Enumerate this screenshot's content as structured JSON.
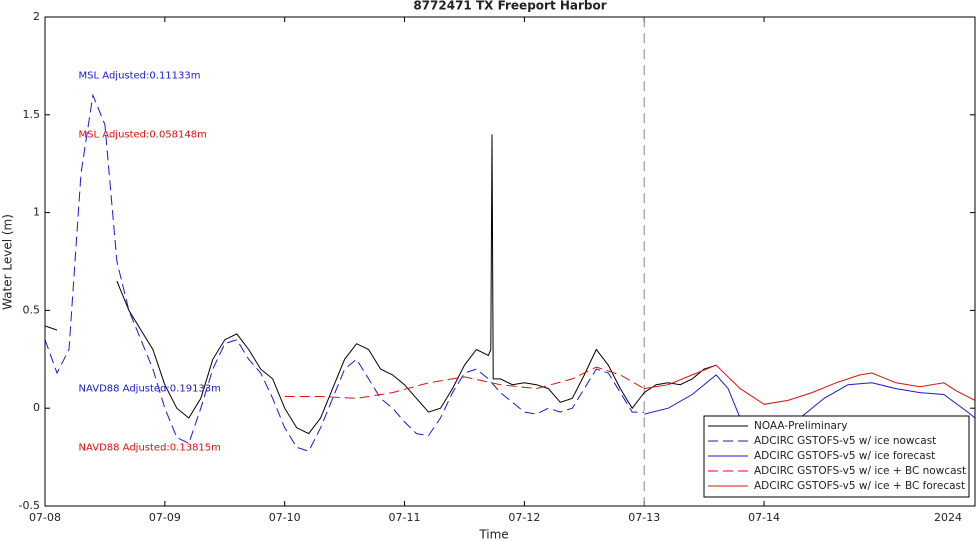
{
  "chart_data": {
    "type": "line",
    "title": "8772471 TX Freeport Harbor",
    "xlabel": "Time",
    "ylabel": "Water Level (m)",
    "x_secondary_label": "2024",
    "xlim": [
      8,
      15.76
    ],
    "ylim": [
      -0.5,
      2
    ],
    "xticks": [
      {
        "value": 8,
        "label": "07-08"
      },
      {
        "value": 9,
        "label": "07-09"
      },
      {
        "value": 10,
        "label": "07-10"
      },
      {
        "value": 11,
        "label": "07-11"
      },
      {
        "value": 12,
        "label": "07-12"
      },
      {
        "value": 13,
        "label": "07-13"
      },
      {
        "value": 14,
        "label": "07-14"
      }
    ],
    "yticks": [
      -0.5,
      0,
      0.5,
      1,
      1.5,
      2
    ],
    "grid": false,
    "legend": "southeast",
    "vlines": [
      {
        "x": 13,
        "color": "#888888"
      }
    ],
    "annotations": [
      {
        "text": "MSL Adjusted:0.11133m",
        "x": 8.28,
        "y": 1.7,
        "color": "#1a1ad6"
      },
      {
        "text": "MSL Adjusted:0.058148m",
        "x": 8.28,
        "y": 1.4,
        "color": "#e01010"
      },
      {
        "text": "NAVD88 Adjusted:0.19133m",
        "x": 8.28,
        "y": 0.1,
        "color": "#1a1ad6"
      },
      {
        "text": "NAVD88 Adjusted:0.13815m",
        "x": 8.28,
        "y": -0.2,
        "color": "#e01010"
      }
    ],
    "series": [
      {
        "name": "NOAA-Preliminary",
        "color": "#000000",
        "style": "solid",
        "x": [
          8.0,
          8.1,
          8.2,
          8.3,
          8.4,
          8.5,
          8.6,
          8.7,
          8.8,
          8.9,
          9.0,
          9.1,
          9.2,
          9.3,
          9.4,
          9.5,
          9.6,
          9.7,
          9.8,
          9.9,
          10.0,
          10.1,
          10.2,
          10.3,
          10.4,
          10.5,
          10.6,
          10.7,
          10.8,
          10.9,
          11.0,
          11.1,
          11.2,
          11.3,
          11.4,
          11.5,
          11.6,
          11.7,
          11.72,
          11.73,
          11.74,
          11.8,
          11.9,
          12.0,
          12.1,
          12.2,
          12.3,
          12.4,
          12.5,
          12.6,
          12.7,
          12.8,
          12.9,
          13.0,
          13.1,
          13.2,
          13.3,
          13.4,
          13.5,
          13.6
        ],
        "values": [
          0.42,
          0.4,
          null,
          null,
          null,
          null,
          0.65,
          0.5,
          0.4,
          0.3,
          0.12,
          0.0,
          -0.05,
          0.05,
          0.25,
          0.35,
          0.38,
          0.3,
          0.2,
          0.15,
          0.0,
          -0.1,
          -0.13,
          -0.05,
          0.1,
          0.25,
          0.33,
          0.3,
          0.2,
          0.17,
          0.12,
          0.05,
          -0.02,
          0.0,
          0.1,
          0.22,
          0.3,
          0.27,
          0.3,
          1.4,
          0.15,
          0.15,
          0.12,
          0.13,
          0.12,
          0.1,
          0.03,
          0.05,
          0.17,
          0.3,
          0.22,
          0.1,
          0.0,
          0.08,
          0.12,
          0.13,
          0.12,
          0.15,
          0.2,
          0.22
        ]
      },
      {
        "name": "ADCIRC GSTOFS-v5 w/ ice nowcast",
        "color": "#1a1ad6",
        "style": "dashed",
        "x": [
          8.0,
          8.1,
          8.2,
          8.3,
          8.4,
          8.5,
          8.6,
          8.7,
          8.8,
          8.9,
          9.0,
          9.1,
          9.2,
          9.3,
          9.4,
          9.5,
          9.6,
          9.7,
          9.8,
          9.9,
          10.0,
          10.1,
          10.2,
          10.3,
          10.4,
          10.5,
          10.6,
          10.7,
          10.8,
          10.9,
          11.0,
          11.1,
          11.2,
          11.3,
          11.4,
          11.5,
          11.6,
          11.7,
          11.8,
          11.9,
          12.0,
          12.1,
          12.2,
          12.3,
          12.4,
          12.5,
          12.6,
          12.7,
          12.8,
          12.9,
          13.0
        ],
        "values": [
          0.35,
          0.18,
          0.3,
          1.2,
          1.6,
          1.45,
          0.75,
          0.5,
          0.35,
          0.2,
          0.0,
          -0.15,
          -0.18,
          0.0,
          0.2,
          0.33,
          0.35,
          0.25,
          0.18,
          0.05,
          -0.1,
          -0.2,
          -0.22,
          -0.1,
          0.05,
          0.2,
          0.25,
          0.15,
          0.05,
          0.0,
          -0.07,
          -0.13,
          -0.14,
          -0.05,
          0.08,
          0.18,
          0.2,
          0.15,
          0.08,
          0.03,
          -0.02,
          -0.03,
          0.0,
          -0.02,
          0.0,
          0.1,
          0.2,
          0.18,
          0.08,
          -0.02,
          -0.02
        ]
      },
      {
        "name": "ADCIRC GSTOFS-v5 w/ ice forecast",
        "color": "#1a1ad6",
        "style": "solid",
        "x": [
          13.0,
          13.2,
          13.4,
          13.6,
          13.7,
          13.8,
          13.9,
          14.1,
          14.3,
          14.5,
          14.7,
          14.9,
          15.1,
          15.3,
          15.5,
          15.7,
          15.76
        ],
        "values": [
          -0.03,
          0.0,
          0.07,
          0.17,
          0.1,
          -0.05,
          -0.15,
          -0.22,
          -0.05,
          0.05,
          0.12,
          0.13,
          0.1,
          0.08,
          0.07,
          -0.02,
          -0.05
        ]
      },
      {
        "name": "ADCIRC GSTOFS-v5 w/ ice + BC nowcast",
        "color": "#e01010",
        "style": "dashed",
        "x": [
          10.0,
          10.3,
          10.6,
          10.9,
          11.2,
          11.5,
          11.8,
          12.1,
          12.4,
          12.6,
          12.8,
          13.0
        ],
        "values": [
          0.06,
          0.06,
          0.05,
          0.08,
          0.13,
          0.16,
          0.12,
          0.1,
          0.15,
          0.21,
          0.17,
          0.1
        ]
      },
      {
        "name": "ADCIRC GSTOFS-v5 w/ ice + BC forecast",
        "color": "#e01010",
        "style": "solid",
        "x": [
          13.0,
          13.2,
          13.4,
          13.6,
          13.8,
          14.0,
          14.2,
          14.4,
          14.6,
          14.8,
          14.9,
          15.1,
          15.3,
          15.5,
          15.6,
          15.76
        ],
        "values": [
          0.1,
          0.12,
          0.17,
          0.22,
          0.1,
          0.02,
          0.04,
          0.08,
          0.13,
          0.17,
          0.18,
          0.13,
          0.11,
          0.13,
          0.09,
          0.04
        ]
      }
    ]
  }
}
